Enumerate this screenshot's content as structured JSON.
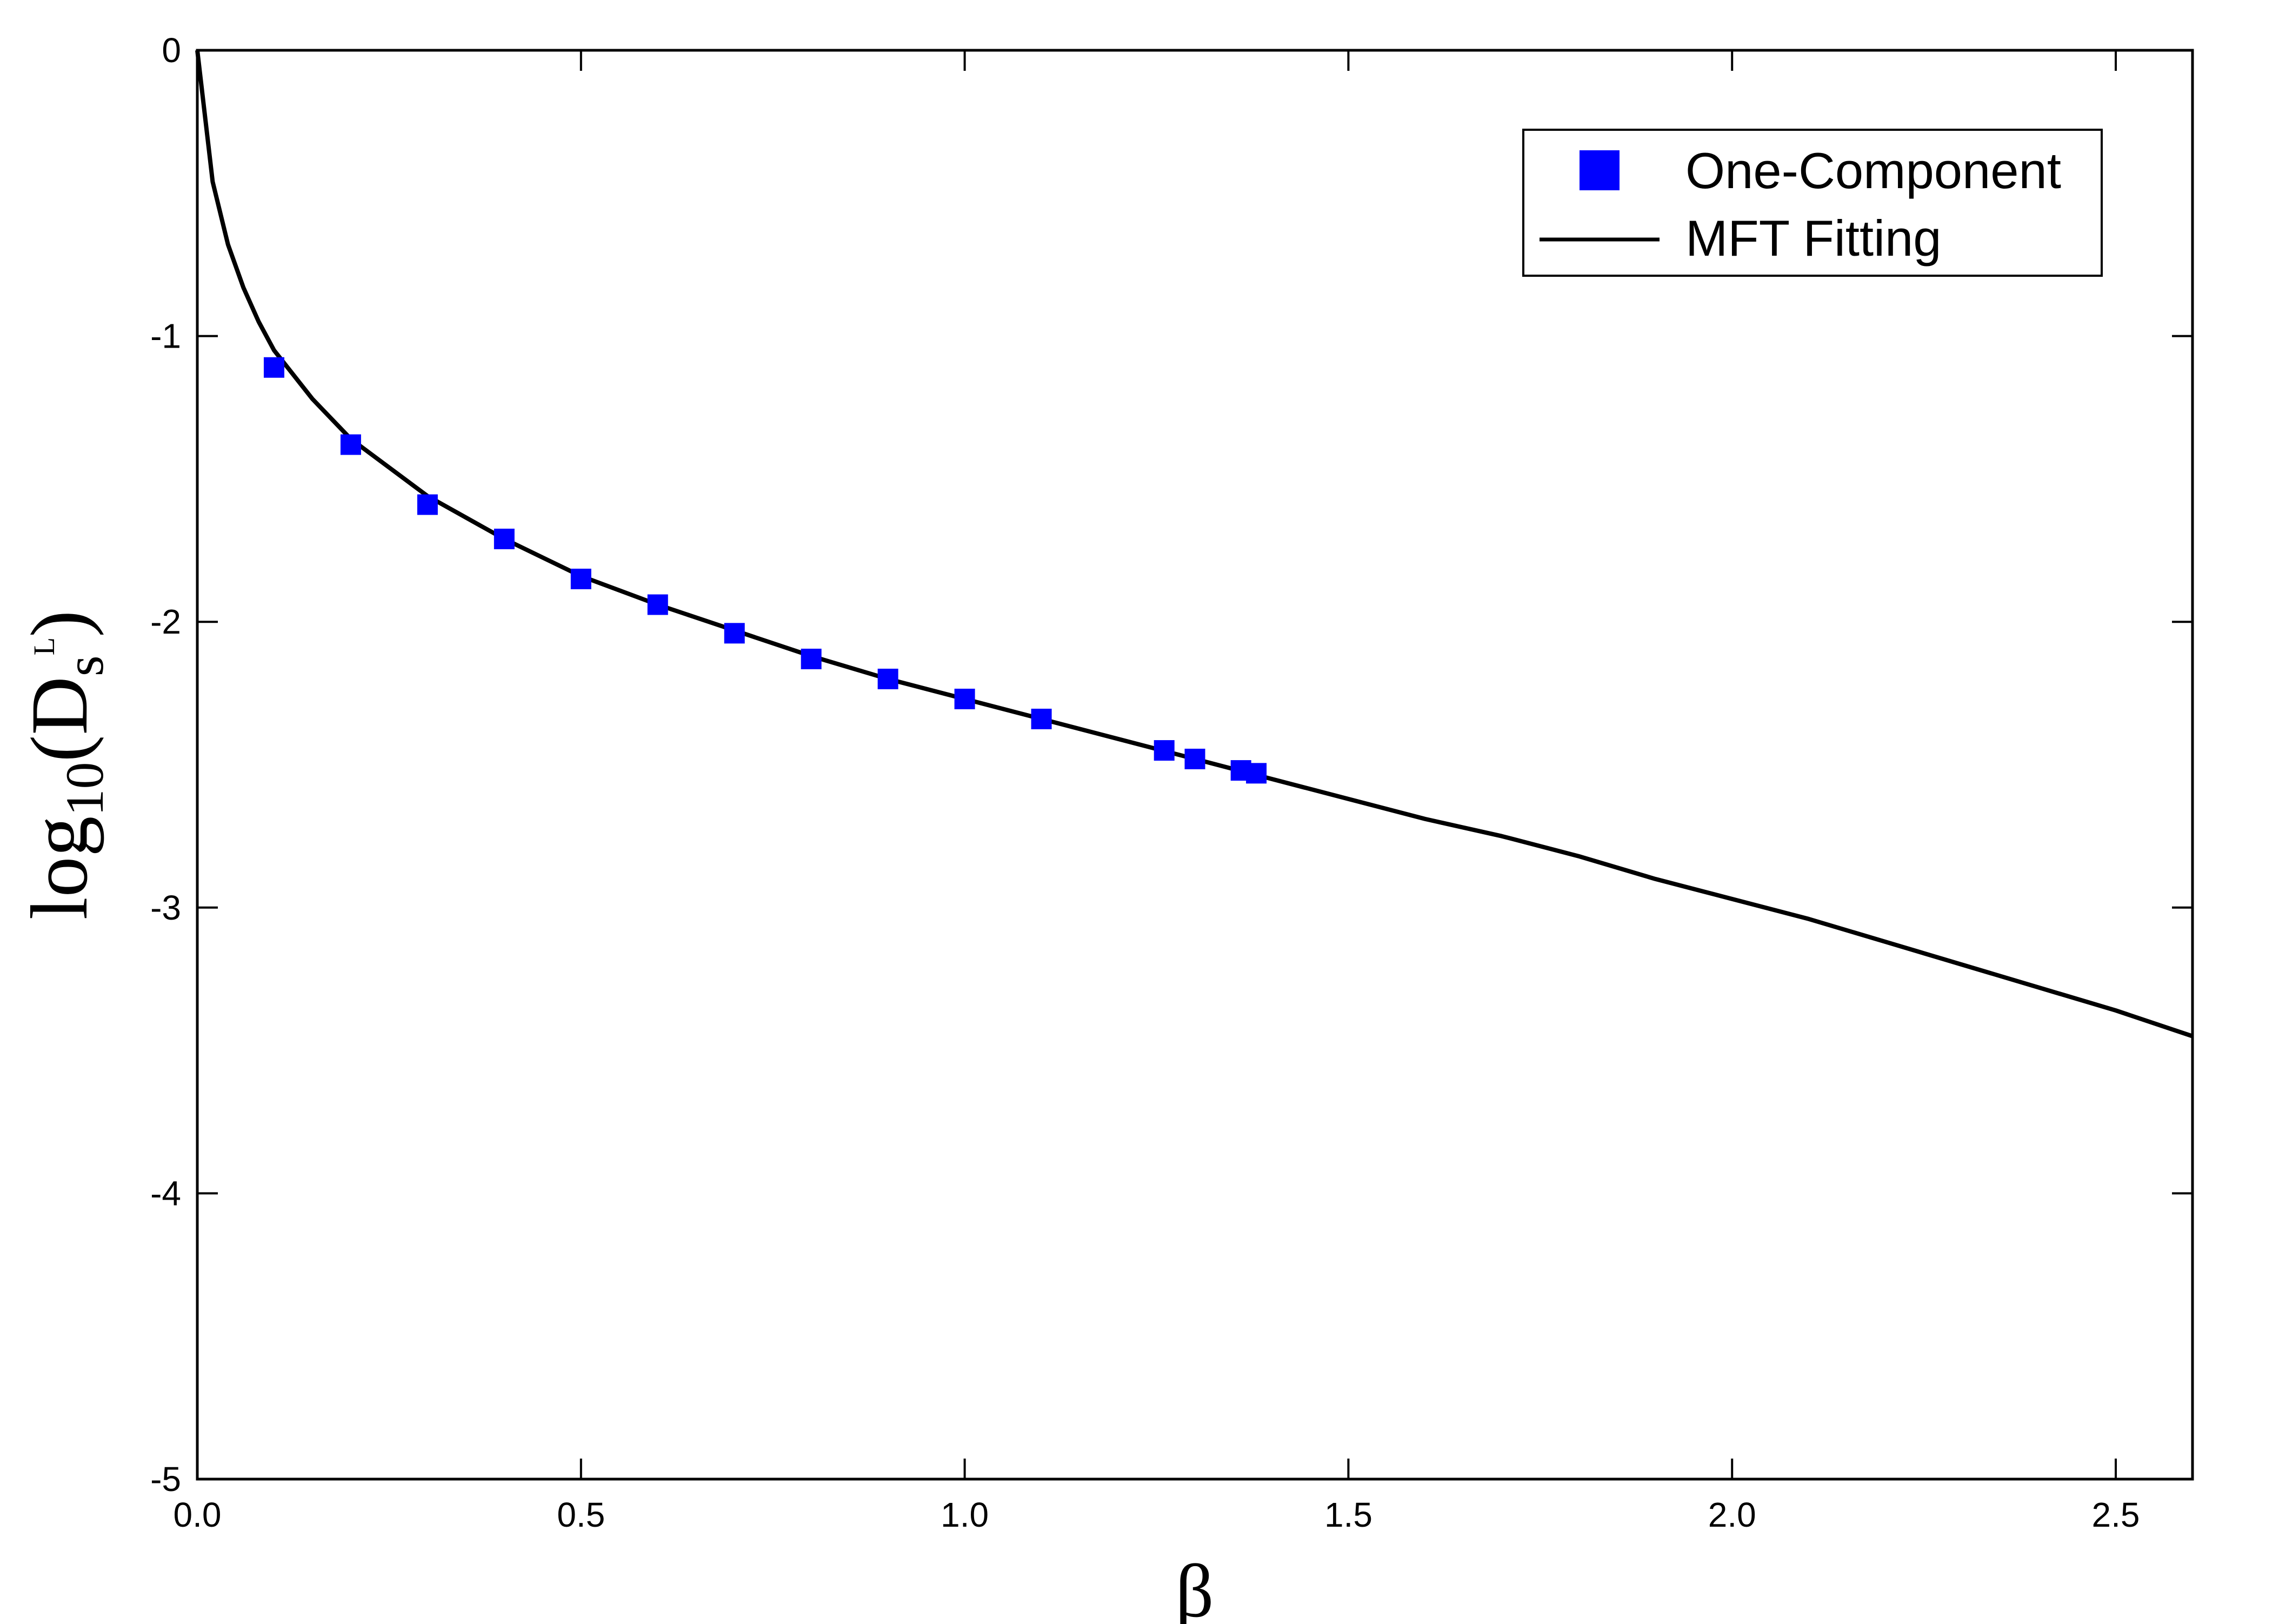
{
  "chart_data": {
    "type": "scatter",
    "xlabel": "β",
    "ylabel": {
      "base": "log",
      "base_sub": "10",
      "open": "(",
      "symbol": "D",
      "symbol_sub": "s",
      "symbol_sup": "L",
      "close": ")"
    },
    "xlim": [
      0.0,
      2.6
    ],
    "ylim": [
      -5,
      0
    ],
    "x_ticks": [
      0.0,
      0.5,
      1.0,
      1.5,
      2.0,
      2.5
    ],
    "x_tick_labels": [
      "0.0",
      "0.5",
      "1.0",
      "1.5",
      "2.0",
      "2.5"
    ],
    "y_ticks": [
      0,
      -1,
      -2,
      -3,
      -4,
      -5
    ],
    "y_tick_labels": [
      "0",
      "-1",
      "-2",
      "-3",
      "-4",
      "-5"
    ],
    "grid": false,
    "legend_position": "top-right",
    "series": [
      {
        "name": "One-Component",
        "kind": "markers",
        "marker": "square",
        "color": "#0000ff",
        "x": [
          0.1,
          0.2,
          0.3,
          0.4,
          0.5,
          0.6,
          0.7,
          0.8,
          0.9,
          1.0,
          1.1,
          1.26,
          1.3,
          1.36,
          1.38
        ],
        "y": [
          -1.11,
          -1.38,
          -1.59,
          -1.71,
          -1.85,
          -1.94,
          -2.04,
          -2.13,
          -2.2,
          -2.27,
          -2.34,
          -2.45,
          -2.48,
          -2.52,
          -2.53
        ]
      },
      {
        "name": "MFT Fitting",
        "kind": "line",
        "color": "#000000",
        "x": [
          0.0,
          0.02,
          0.04,
          0.06,
          0.08,
          0.1,
          0.15,
          0.2,
          0.3,
          0.4,
          0.5,
          0.6,
          0.7,
          0.8,
          0.9,
          1.0,
          1.1,
          1.2,
          1.3,
          1.4,
          1.5,
          1.6,
          1.7,
          1.8,
          1.9,
          2.0,
          2.1,
          2.2,
          2.3,
          2.4,
          2.5,
          2.6
        ],
        "y": [
          0.0,
          -0.46,
          -0.68,
          -0.83,
          -0.95,
          -1.05,
          -1.22,
          -1.36,
          -1.56,
          -1.71,
          -1.84,
          -1.94,
          -2.03,
          -2.12,
          -2.2,
          -2.27,
          -2.34,
          -2.41,
          -2.48,
          -2.55,
          -2.62,
          -2.69,
          -2.75,
          -2.82,
          -2.9,
          -2.97,
          -3.04,
          -3.12,
          -3.2,
          -3.28,
          -3.36,
          -3.45
        ]
      }
    ]
  }
}
